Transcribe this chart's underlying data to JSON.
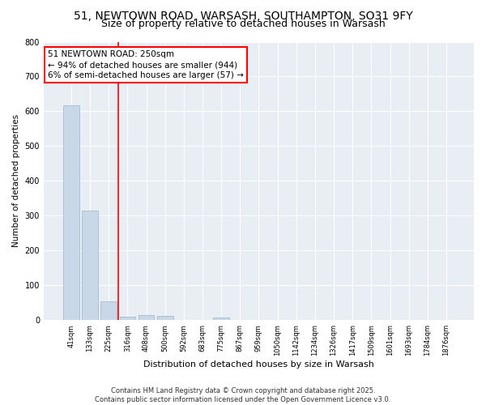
{
  "title_line1": "51, NEWTOWN ROAD, WARSASH, SOUTHAMPTON, SO31 9FY",
  "title_line2": "Size of property relative to detached houses in Warsash",
  "xlabel": "Distribution of detached houses by size in Warsash",
  "ylabel": "Number of detached properties",
  "bar_color": "#c8d8e8",
  "bar_edge_color": "#9ab4cc",
  "annotation_text": "51 NEWTOWN ROAD: 250sqm\n← 94% of detached houses are smaller (944)\n6% of semi-detached houses are larger (57) →",
  "annotation_box_color": "white",
  "annotation_box_edge": "red",
  "vline_color": "red",
  "categories": [
    "41sqm",
    "133sqm",
    "225sqm",
    "316sqm",
    "408sqm",
    "500sqm",
    "592sqm",
    "683sqm",
    "775sqm",
    "867sqm",
    "959sqm",
    "1050sqm",
    "1142sqm",
    "1234sqm",
    "1326sqm",
    "1417sqm",
    "1509sqm",
    "1601sqm",
    "1693sqm",
    "1784sqm",
    "1876sqm"
  ],
  "values": [
    617,
    316,
    55,
    11,
    15,
    12,
    0,
    0,
    8,
    0,
    0,
    0,
    0,
    0,
    0,
    0,
    0,
    0,
    0,
    0,
    0
  ],
  "ylim": [
    0,
    800
  ],
  "yticks": [
    0,
    100,
    200,
    300,
    400,
    500,
    600,
    700,
    800
  ],
  "background_color": "#e8eef4",
  "grid_color": "white",
  "title_fontsize": 10,
  "subtitle_fontsize": 9,
  "tick_fontsize": 6,
  "footer_text": "Contains HM Land Registry data © Crown copyright and database right 2025.\nContains public sector information licensed under the Open Government Licence v3.0."
}
